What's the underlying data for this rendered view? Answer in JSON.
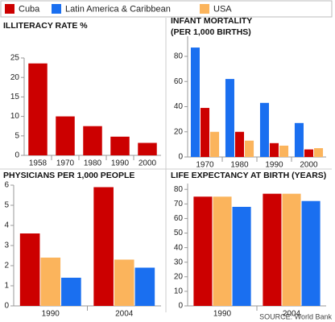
{
  "chart_data": [
    {
      "type": "bar",
      "title": "ILLITERACY RATE %",
      "categories": [
        "1958",
        "1970",
        "1980",
        "1990",
        "2000"
      ],
      "series": [
        {
          "name": "Cuba",
          "color": "#cc0000",
          "values": [
            23.6,
            10,
            7.5,
            4.8,
            3.2
          ]
        }
      ],
      "ylim": [
        0,
        25
      ],
      "yticks": [
        0,
        5,
        10,
        15,
        20,
        25
      ]
    },
    {
      "type": "bar",
      "title": "INFANT MORTALITY",
      "subtitle": "(PER 1,000 BIRTHS)",
      "categories": [
        "1970",
        "1980",
        "1990",
        "2000"
      ],
      "series": [
        {
          "name": "Latin America & Caribbean",
          "color": "#1a6ff0",
          "values": [
            87,
            62,
            43,
            27
          ]
        },
        {
          "name": "Cuba",
          "color": "#cc0000",
          "values": [
            39,
            20,
            11,
            6
          ]
        },
        {
          "name": "USA",
          "color": "#fbb45c",
          "values": [
            20,
            13,
            9,
            7
          ]
        }
      ],
      "ylim": [
        0,
        96
      ],
      "yticks": [
        0,
        20,
        40,
        60,
        80
      ]
    },
    {
      "type": "bar",
      "title": "PHYSICIANS PER 1,000 PEOPLE",
      "categories": [
        "1990",
        "2004"
      ],
      "series": [
        {
          "name": "Cuba",
          "color": "#cc0000",
          "values": [
            3.6,
            5.9
          ]
        },
        {
          "name": "USA",
          "color": "#fbb45c",
          "values": [
            2.4,
            2.3
          ]
        },
        {
          "name": "Latin America & Caribbean",
          "color": "#1a6ff0",
          "values": [
            1.4,
            1.9
          ]
        }
      ],
      "ylim": [
        0,
        6
      ],
      "yticks": [
        0,
        1,
        2,
        3,
        4,
        5,
        6
      ]
    },
    {
      "type": "bar",
      "title": "LIFE EXPECTANCY AT BIRTH (YEARS)",
      "categories": [
        "1990",
        "2004"
      ],
      "series": [
        {
          "name": "Cuba",
          "color": "#cc0000",
          "values": [
            75,
            77
          ]
        },
        {
          "name": "USA",
          "color": "#fbb45c",
          "values": [
            75,
            77
          ]
        },
        {
          "name": "Latin America & Caribbean",
          "color": "#1a6ff0",
          "values": [
            68,
            72
          ]
        }
      ],
      "ylim": [
        0,
        84
      ],
      "yticks": [
        0,
        10,
        20,
        30,
        40,
        50,
        60,
        70,
        80
      ]
    }
  ],
  "source": "SOURCE: World Bank"
}
